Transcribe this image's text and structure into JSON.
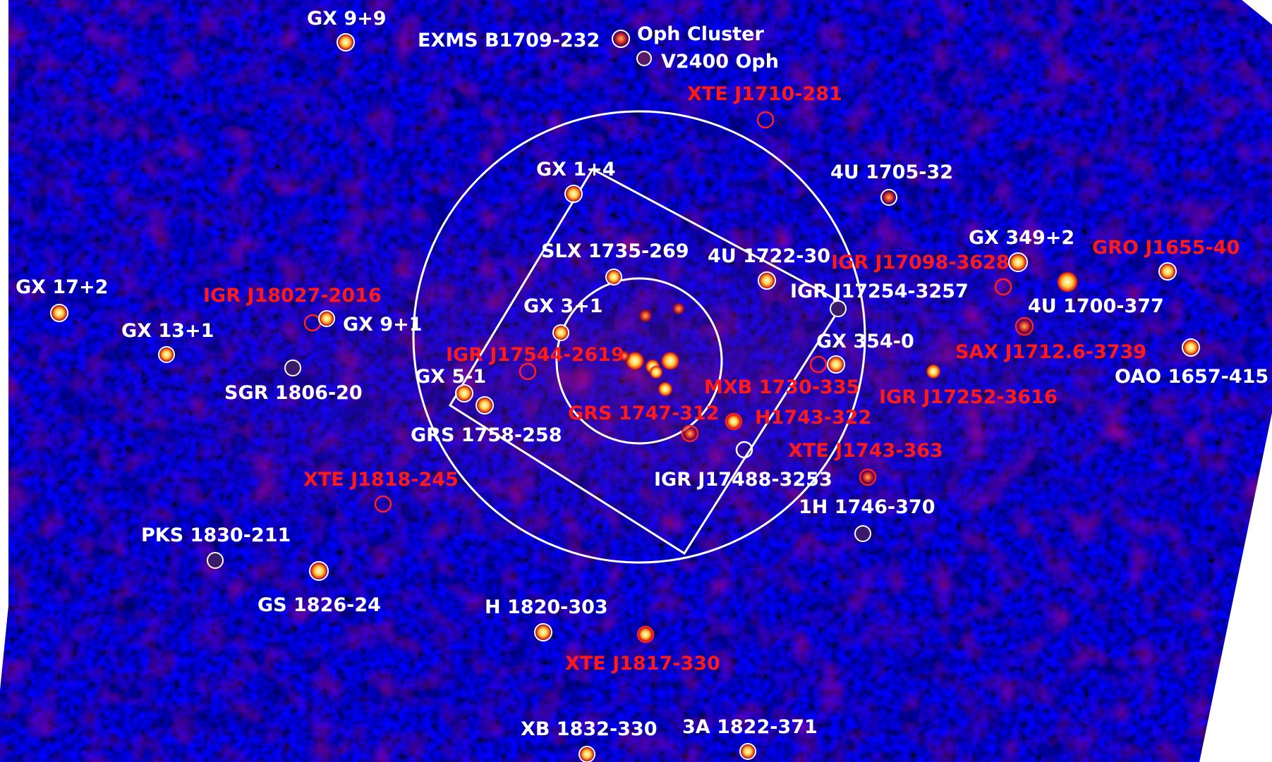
{
  "colors": {
    "background": "#ffffff",
    "sky_base": "#000055",
    "known_source_label": "#ffffff",
    "transient_label": "#ff1a1a",
    "field_outline": "#ffffff"
  },
  "sources": {
    "gx_9_9": "GX 9+9",
    "exms_b1709_232": "EXMS B1709-232",
    "oph_cluster": "Oph Cluster",
    "v2400_oph": "V2400 Oph",
    "xte_j1710_281": "XTE J1710-281",
    "gx_1_4": "GX 1+4",
    "u4_1705_32": "4U 1705-32",
    "gx_349_2": "GX 349+2",
    "gro_j1655_40": "GRO J1655-40",
    "slx_1735_269": "SLX 1735-269",
    "u4_1722_30": "4U 1722-30",
    "igr_j17098_3628": "IGR J17098-3628",
    "gx_17_2": "GX 17+2",
    "igr_j18027_2016": "IGR J18027-2016",
    "igr_j17254_3257": "IGR J17254-3257",
    "u4_1700_377": "4U 1700-377",
    "gx_3_1": "GX 3+1",
    "gx_9_1": "GX 9+1",
    "gx_13_1": "GX 13+1",
    "igr_j17544_2619": "IGR J17544-2619",
    "gx_354_0": "GX 354-0",
    "sax_j1712_6_3739": "SAX J1712.6-3739",
    "oao_1657_415": "OAO 1657-415",
    "gx_5_1": "GX 5-1",
    "sgr_1806_20": "SGR 1806-20",
    "mxb_1730_335": "MXB 1730-335",
    "igr_j17252_3616": "IGR J17252-3616",
    "grs_1747_312": "GRS 1747-312",
    "h1743_322": "H1743-322",
    "grs_1758_258": "GRS 1758-258",
    "xte_j1743_363": "XTE J1743-363",
    "igr_j17488_3253": "IGR J17488-3253",
    "xte_j1818_245": "XTE J1818-245",
    "h1_1746_370": "1H 1746-370",
    "pks_1830_211": "PKS 1830-211",
    "gs_1826_24": "GS 1826-24",
    "h_1820_303": "H 1820-303",
    "xte_j1817_330": "XTE J1817-330",
    "xb_1832_330": "XB 1832-330",
    "a3_1822_371": "3A 1822-371"
  }
}
